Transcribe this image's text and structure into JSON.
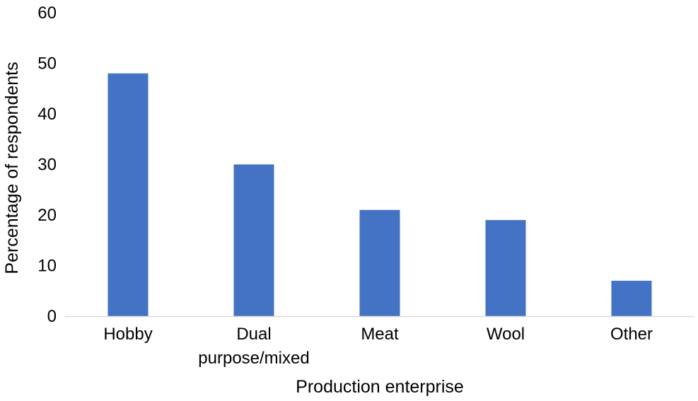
{
  "chart_data": {
    "type": "bar",
    "title": "",
    "xlabel": "Production enterprise",
    "ylabel": "Percentage of respondents",
    "categories": [
      [
        "Hobby"
      ],
      [
        "Dual",
        "purpose/mixed"
      ],
      [
        "Meat"
      ],
      [
        "Wool"
      ],
      [
        "Other"
      ]
    ],
    "values": [
      48,
      30,
      21,
      19,
      7
    ],
    "ylim": [
      0,
      60
    ],
    "yticks": [
      "0",
      "10",
      "20",
      "30",
      "40",
      "50",
      "60"
    ],
    "grid": false,
    "legend": "none",
    "bar_color": "#4472C4",
    "axis_color": "#D9D9D9"
  }
}
